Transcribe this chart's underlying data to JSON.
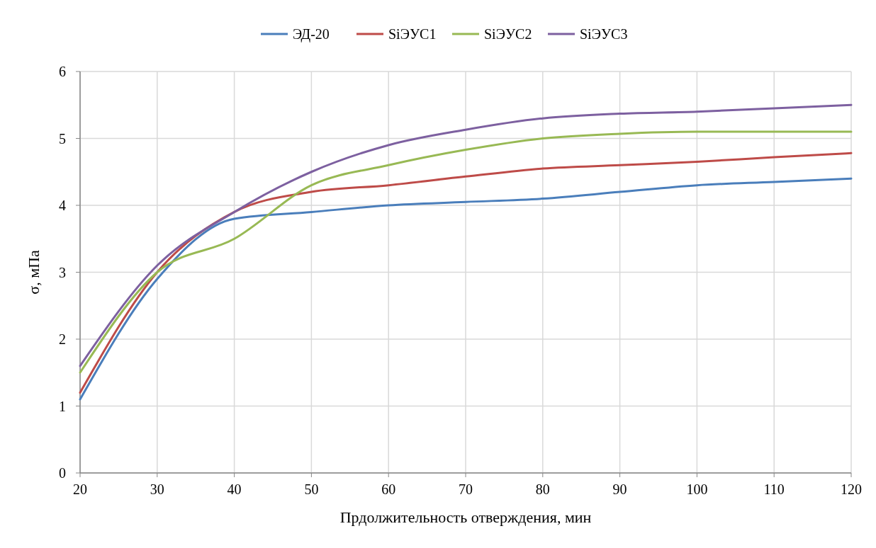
{
  "chart_data": {
    "type": "line",
    "xlabel": "Прдолжительность отверждения, мин",
    "ylabel": "σ, мПа",
    "x": [
      20,
      30,
      40,
      50,
      60,
      70,
      80,
      90,
      100,
      110,
      120
    ],
    "series": [
      {
        "name": "ЭД-20",
        "color": "#4a7ebb",
        "values": [
          1.1,
          2.9,
          3.8,
          3.9,
          4.0,
          4.05,
          4.1,
          4.2,
          4.3,
          4.35,
          4.4
        ]
      },
      {
        "name": "SiЭУС1",
        "color": "#be4b48",
        "values": [
          1.2,
          3.0,
          3.9,
          4.2,
          4.3,
          4.43,
          4.55,
          4.6,
          4.65,
          4.72,
          4.78
        ]
      },
      {
        "name": "SiЭУС2",
        "color": "#98b954",
        "values": [
          1.5,
          3.0,
          3.5,
          4.3,
          4.6,
          4.83,
          5.0,
          5.07,
          5.1,
          5.1,
          5.1
        ]
      },
      {
        "name": "SiЭУС3",
        "color": "#7d60a0",
        "values": [
          1.6,
          3.1,
          3.9,
          4.5,
          4.9,
          5.13,
          5.3,
          5.37,
          5.4,
          5.45,
          5.5
        ]
      }
    ],
    "xlim": [
      20,
      120
    ],
    "xticks": [
      20,
      30,
      40,
      50,
      60,
      70,
      80,
      90,
      100,
      110,
      120
    ],
    "ylim": [
      0,
      6
    ],
    "yticks": [
      0,
      1,
      2,
      3,
      4,
      5,
      6
    ],
    "grid": true,
    "legend": "top",
    "marker": "none",
    "line_style": "solid"
  }
}
